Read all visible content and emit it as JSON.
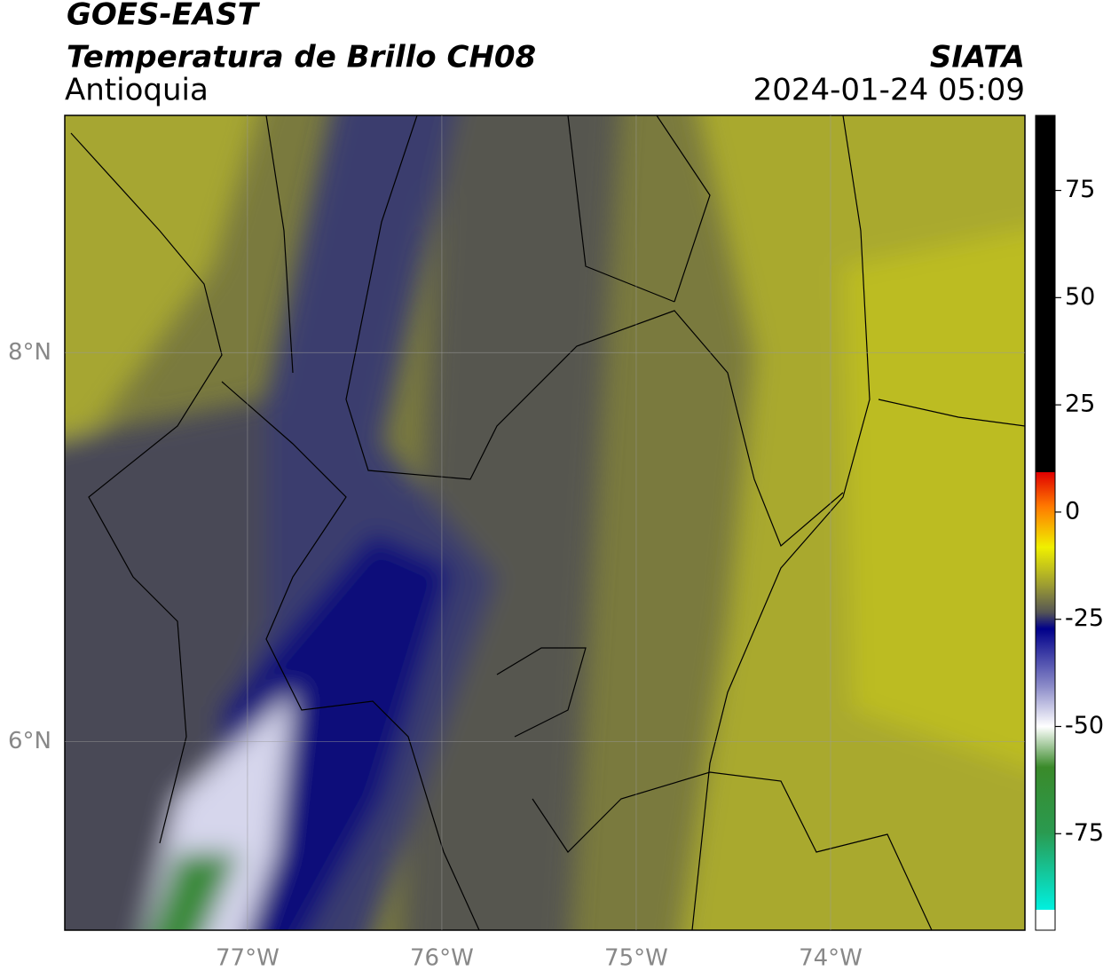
{
  "header": {
    "title": "GOES-EAST",
    "subtitle": "Temperatura de Brillo CH08",
    "region": "Antioquia",
    "source": "SIATA",
    "datetime": "2024-01-24 05:09"
  },
  "map": {
    "xlim": [
      -77.94,
      -73.0
    ],
    "ylim": [
      5.03,
      9.22
    ],
    "xticks": [
      {
        "value": -77,
        "label": "77°W"
      },
      {
        "value": -76,
        "label": "76°W"
      },
      {
        "value": -75,
        "label": "75°W"
      },
      {
        "value": -74,
        "label": "74°W"
      }
    ],
    "yticks": [
      {
        "value": 6,
        "label": "6°N"
      },
      {
        "value": 8,
        "label": "8°N"
      }
    ],
    "grid": true
  },
  "colorbar": {
    "lim": [
      -97.5,
      92.5
    ],
    "ticks": [
      -75,
      -50,
      -25,
      0,
      25,
      50,
      75
    ]
  }
}
